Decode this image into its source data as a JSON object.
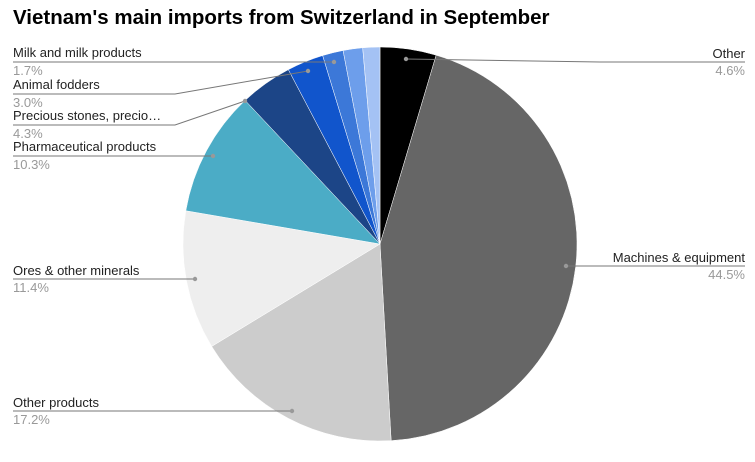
{
  "chart_data": {
    "type": "pie",
    "title": "Vietnam's main imports from Switzerland in September",
    "start": "top",
    "direction": "clockwise",
    "slices": [
      {
        "label": "Other",
        "pct_label": "4.6%",
        "value": 4.6,
        "color": "#000000"
      },
      {
        "label": "Machines & equipment",
        "pct_label": "44.5%",
        "value": 44.5,
        "color": "#666666"
      },
      {
        "label": "Other products",
        "pct_label": "17.2%",
        "value": 17.2,
        "color": "#cccccc"
      },
      {
        "label": "Ores & other minerals",
        "pct_label": "11.4%",
        "value": 11.4,
        "color": "#eeeeee"
      },
      {
        "label": "Pharmaceutical products",
        "pct_label": "10.3%",
        "value": 10.3,
        "color": "#4bacc6"
      },
      {
        "label": "Precious stones, precio…",
        "pct_label": "4.3%",
        "value": 4.3,
        "color": "#1c4587"
      },
      {
        "label": "Animal fodders",
        "pct_label": "3.0%",
        "value": 3.0,
        "color": "#1155cc"
      },
      {
        "label": "Milk and milk products",
        "pct_label": "1.7%",
        "value": 1.7,
        "color": "#3c78d8"
      },
      {
        "label": "",
        "pct_label": "",
        "value": 1.6,
        "color": "#6d9eeb"
      },
      {
        "label": "",
        "pct_label": "",
        "value": 1.4,
        "color": "#a4c2f4"
      }
    ],
    "legend": "labels with leader lines"
  }
}
